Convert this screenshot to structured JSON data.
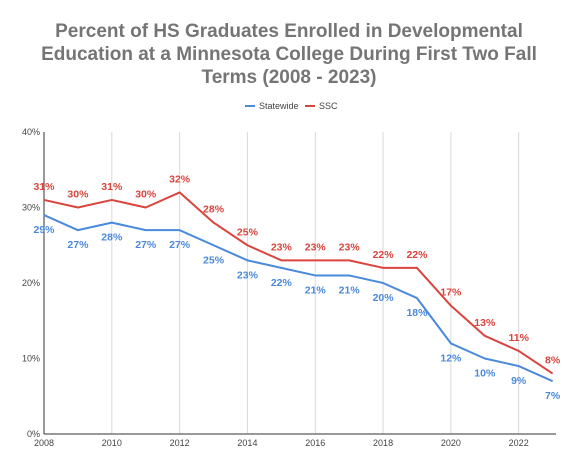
{
  "chart_data": {
    "type": "line",
    "title_lines": [
      "Percent of HS Graduates Enrolled in Developmental",
      "Education at a Minnesota College During First Two Fall",
      "Terms (2008 - 2023)"
    ],
    "x": [
      2008,
      2009,
      2010,
      2011,
      2012,
      2013,
      2014,
      2015,
      2016,
      2017,
      2018,
      2019,
      2020,
      2021,
      2022,
      2023
    ],
    "x_tick_labels": [
      "2008",
      "2010",
      "2012",
      "2014",
      "2016",
      "2018",
      "2020",
      "2022"
    ],
    "y_tick_labels": [
      "0%",
      "10%",
      "20%",
      "30%",
      "40%"
    ],
    "ylim": [
      0,
      40
    ],
    "grid": {
      "vertical": true,
      "horizontal": false
    },
    "legend_position": "top-center",
    "series": [
      {
        "name": "Statewide",
        "color": "#4a89dc",
        "values": [
          29,
          27,
          28,
          27,
          27,
          25,
          23,
          22,
          21,
          21,
          20,
          18,
          12,
          10,
          9,
          7
        ],
        "labels": [
          "29%",
          "27%",
          "28%",
          "27%",
          "27%",
          "25%",
          "23%",
          "22%",
          "21%",
          "21%",
          "20%",
          "18%",
          "12%",
          "10%",
          "9%",
          "7%"
        ]
      },
      {
        "name": "SSC",
        "color": "#d9453d",
        "values": [
          31,
          30,
          31,
          30,
          32,
          28,
          25,
          23,
          23,
          23,
          22,
          22,
          17,
          13,
          11,
          8
        ],
        "labels": [
          "31%",
          "30%",
          "31%",
          "30%",
          "32%",
          "28%",
          "25%",
          "23%",
          "23%",
          "23%",
          "22%",
          "22%",
          "17%",
          "13%",
          "11%",
          "8%"
        ]
      }
    ]
  }
}
